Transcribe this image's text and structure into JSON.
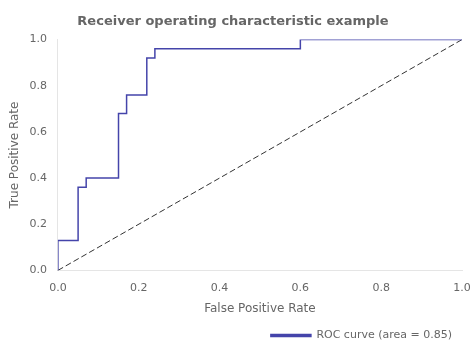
{
  "chart_data": {
    "type": "line",
    "title": "Receiver operating characteristic example",
    "xlabel": "False Positive Rate",
    "ylabel": "True Positive Rate",
    "series": [
      {
        "name": "ROC curve (area = 0.85)",
        "color": "#4444aa",
        "line_style": "solid",
        "x": [
          0.0,
          0.0,
          0.05,
          0.05,
          0.07,
          0.07,
          0.15,
          0.15,
          0.17,
          0.17,
          0.22,
          0.22,
          0.24,
          0.24,
          0.6,
          0.6,
          1.0
        ],
        "values": [
          0.0,
          0.13,
          0.13,
          0.36,
          0.36,
          0.4,
          0.4,
          0.68,
          0.68,
          0.76,
          0.76,
          0.92,
          0.92,
          0.96,
          0.96,
          1.0,
          1.0
        ]
      },
      {
        "color": "#333333",
        "line_style": "dashed",
        "x": [
          0,
          1
        ],
        "values": [
          0,
          1
        ]
      }
    ],
    "xlim": [
      0.0,
      1.0
    ],
    "ylim": [
      0.0,
      1.0
    ],
    "xticks": [
      {
        "value": 0,
        "label": "0.0"
      },
      0.2,
      0.4,
      0.6,
      0.8,
      {
        "value": 1,
        "label": "1.0"
      }
    ],
    "yticks": [
      {
        "value": 0,
        "label": "0.0"
      },
      0.2,
      0.4,
      0.6,
      0.8,
      {
        "value": 1,
        "label": "1.0"
      }
    ],
    "grid": false,
    "legend": "lower right"
  }
}
